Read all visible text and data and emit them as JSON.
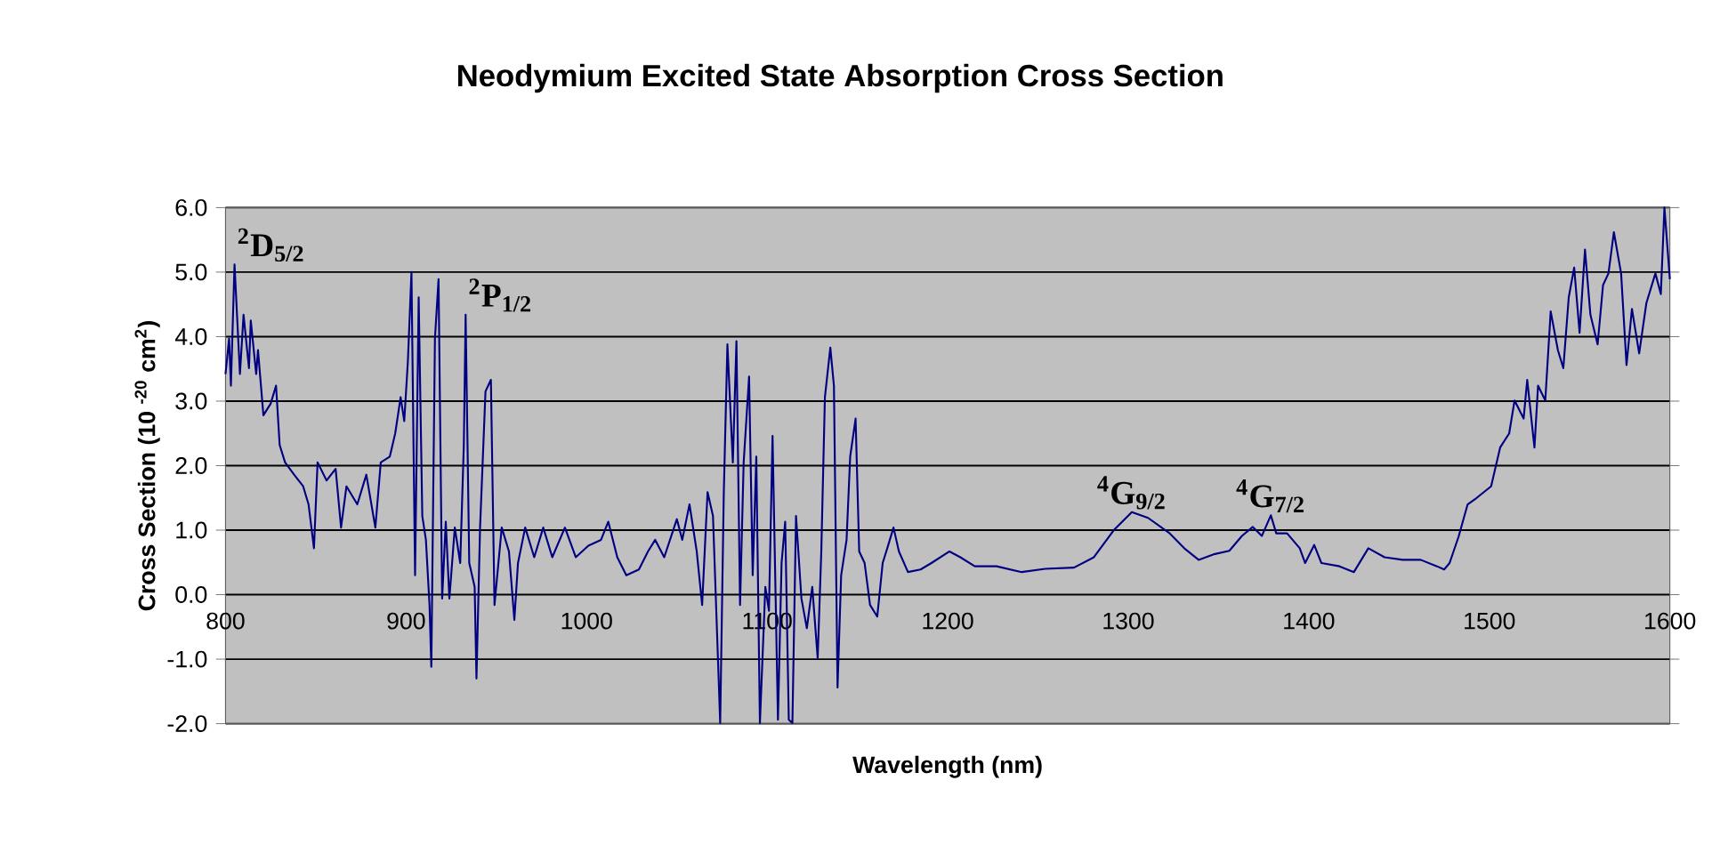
{
  "chart_data": {
    "type": "line",
    "title": "Neodymium Excited State Absorption Cross Section",
    "xlabel": "Wavelength (nm)",
    "ylabel": "Cross Section (10 $^{-20}$ cm$^{2}$)",
    "xlim": [
      800,
      1600
    ],
    "xticks": [
      800,
      900,
      1000,
      1100,
      1200,
      1300,
      1400,
      1500,
      1600
    ],
    "ylim": [
      -2,
      6
    ],
    "yticks": [
      {
        "value": -2,
        "label": "-2.0"
      },
      {
        "value": -1,
        "label": "-1.0"
      },
      {
        "value": 0,
        "label": "0.0"
      },
      {
        "value": 1,
        "label": "1.0"
      },
      {
        "value": 2,
        "label": "2.0"
      },
      {
        "value": 3,
        "label": "3.0"
      },
      {
        "value": 4,
        "label": "4.0"
      },
      {
        "value": 5,
        "label": "5.0"
      },
      {
        "value": 6,
        "label": "6.0"
      }
    ],
    "grid": "y",
    "color": "#000080",
    "annotations": [
      {
        "text": "$^{2}$D$_{5/2}$",
        "x": 805,
        "y": 5.12
      },
      {
        "text": "$^{2}$P$_{1/2}$",
        "x": 933,
        "y": 4.34
      },
      {
        "text": "$^{4}$G$_{9/2}$",
        "x": 1302,
        "y": 1.28
      },
      {
        "text": "$^{4}$G$_{7/2}$",
        "x": 1379,
        "y": 1.23
      }
    ],
    "x": [
      800,
      802,
      803,
      805,
      808,
      810,
      813,
      814,
      817,
      818,
      821,
      825,
      828,
      830,
      833,
      838,
      843,
      846,
      849,
      851,
      856,
      861,
      864,
      867,
      873,
      878,
      883,
      886,
      891,
      894,
      897,
      899,
      901,
      903,
      905,
      907,
      909,
      911,
      913,
      914,
      916,
      918,
      920,
      922,
      924,
      927,
      930,
      932,
      933,
      935,
      938,
      939,
      941,
      944,
      947,
      949,
      953,
      957,
      960,
      962,
      966,
      971,
      976,
      981,
      988,
      994,
      1001,
      1008,
      1012,
      1017,
      1022,
      1029,
      1034,
      1038,
      1043,
      1050,
      1053,
      1057,
      1061,
      1064,
      1067,
      1070,
      1074,
      1076,
      1078,
      1081,
      1083,
      1085,
      1087,
      1090,
      1092,
      1094,
      1096,
      1099,
      1101,
      1103,
      1106,
      1108,
      1110,
      1112,
      1114,
      1116,
      1119,
      1122,
      1125,
      1128,
      1130,
      1132,
      1135,
      1137,
      1139,
      1141,
      1144,
      1146,
      1149,
      1151,
      1154,
      1157,
      1161,
      1164,
      1167,
      1170,
      1173,
      1178,
      1185,
      1191,
      1201,
      1207,
      1215,
      1227,
      1241,
      1254,
      1270,
      1281,
      1292,
      1302,
      1311,
      1323,
      1331,
      1339,
      1348,
      1356,
      1363,
      1369,
      1374,
      1379,
      1382,
      1388,
      1395,
      1398,
      1403,
      1407,
      1417,
      1425,
      1433,
      1442,
      1452,
      1462,
      1471,
      1475,
      1478,
      1483,
      1488,
      1493,
      1501,
      1506,
      1511,
      1514,
      1519,
      1521,
      1525,
      1527,
      1531,
      1534,
      1538,
      1541,
      1544,
      1547,
      1550,
      1553,
      1556,
      1560,
      1563,
      1566,
      1569,
      1573,
      1576,
      1579,
      1583,
      1587,
      1592,
      1595,
      1597,
      1600
    ],
    "values": [
      3.42,
      3.97,
      3.24,
      5.12,
      3.42,
      4.34,
      3.51,
      4.25,
      3.42,
      3.79,
      2.78,
      2.96,
      3.24,
      2.32,
      2.05,
      1.86,
      1.68,
      1.4,
      0.72,
      2.05,
      1.77,
      1.95,
      1.04,
      1.68,
      1.4,
      1.86,
      1.04,
      2.05,
      2.14,
      2.5,
      3.06,
      2.69,
      3.61,
      5.0,
      0.3,
      4.61,
      1.22,
      0.85,
      -0.16,
      -1.12,
      3.97,
      4.89,
      -0.06,
      1.13,
      -0.06,
      1.04,
      0.49,
      2.32,
      4.34,
      0.49,
      0.12,
      -1.3,
      1.04,
      3.15,
      3.33,
      -0.16,
      1.04,
      0.67,
      -0.39,
      0.49,
      1.04,
      0.58,
      1.04,
      0.58,
      1.04,
      0.58,
      0.76,
      0.85,
      1.13,
      0.58,
      0.3,
      0.39,
      0.67,
      0.85,
      0.58,
      1.17,
      0.85,
      1.4,
      0.67,
      -0.16,
      1.59,
      1.22,
      -1.99,
      1.59,
      3.88,
      2.05,
      3.93,
      -0.16,
      2.05,
      3.38,
      0.3,
      2.14,
      -1.99,
      0.12,
      -0.25,
      2.46,
      -1.94,
      0.49,
      1.13,
      -1.94,
      -1.99,
      1.22,
      -0.06,
      -0.52,
      0.12,
      -0.98,
      0.67,
      3.06,
      3.83,
      3.24,
      -1.44,
      0.3,
      0.85,
      2.14,
      2.73,
      0.67,
      0.49,
      -0.16,
      -0.34,
      0.49,
      0.76,
      1.04,
      0.67,
      0.35,
      0.39,
      0.49,
      0.67,
      0.58,
      0.44,
      0.44,
      0.35,
      0.4,
      0.42,
      0.58,
      1.0,
      1.28,
      1.19,
      0.95,
      0.72,
      0.54,
      0.63,
      0.68,
      0.91,
      1.05,
      0.91,
      1.23,
      0.95,
      0.95,
      0.72,
      0.49,
      0.77,
      0.49,
      0.44,
      0.35,
      0.72,
      0.58,
      0.54,
      0.54,
      0.44,
      0.39,
      0.49,
      0.9,
      1.4,
      1.5,
      1.68,
      2.28,
      2.5,
      3.01,
      2.73,
      3.33,
      2.28,
      3.24,
      3.01,
      4.39,
      3.79,
      3.51,
      4.61,
      5.07,
      4.06,
      5.35,
      4.34,
      3.88,
      4.8,
      4.98,
      5.62,
      4.98,
      3.56,
      4.43,
      3.74,
      4.52,
      4.98,
      4.66,
      6.0,
      4.89
    ]
  }
}
